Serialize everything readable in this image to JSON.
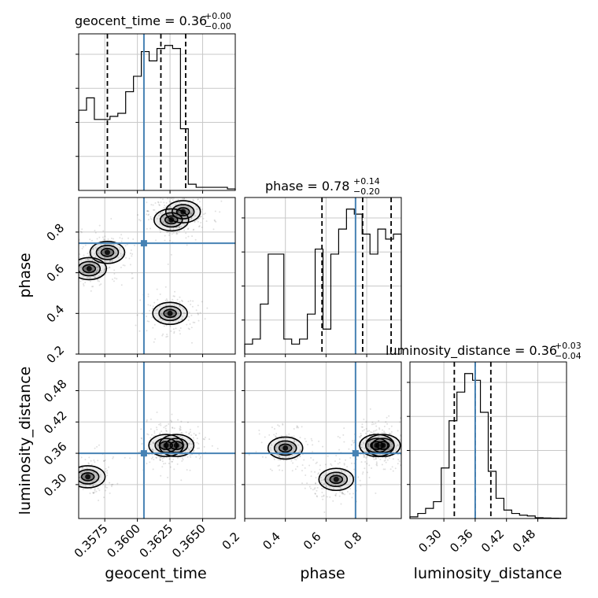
{
  "chart_data": {
    "type": "corner",
    "parameters": [
      "geocent_time",
      "phase",
      "luminosity_distance"
    ],
    "truths": {
      "geocent_time": 0.3605,
      "phase": 0.745,
      "luminosity_distance": 0.36
    },
    "truth_color": "#4682b4",
    "titles": [
      {
        "param": "geocent_time",
        "label": "geocent_time = 0.36",
        "plus": "+0.00",
        "minus": "−0.00"
      },
      {
        "param": "phase",
        "label": "phase = 0.78",
        "plus": "+0.14",
        "minus": "−0.20"
      },
      {
        "param": "luminosity_distance",
        "label": "luminosity_distance = 0.36",
        "plus": "+0.03",
        "minus": "−0.04"
      }
    ],
    "axes": {
      "geocent_time": {
        "range": [
          0.3555,
          0.3675
        ],
        "ticks": [
          "0.3575",
          "0.3600",
          "0.3625",
          "0.3650"
        ]
      },
      "phase": {
        "range": [
          0.2,
          0.97
        ],
        "ticks": [
          "0.2",
          "0.4",
          "0.6",
          "0.8"
        ]
      },
      "luminosity_distance": {
        "range": [
          0.235,
          0.535
        ],
        "ticks": [
          "0.30",
          "0.36",
          "0.42",
          "0.48"
        ]
      }
    },
    "histograms": {
      "geocent_time": {
        "bin_start": 0.3555,
        "bin_width": 0.0006,
        "counts": [
          0.26,
          0.3,
          0.23,
          0.23,
          0.24,
          0.25,
          0.32,
          0.37,
          0.45,
          0.42,
          0.46,
          0.47,
          0.46,
          0.2,
          0.02,
          0.01,
          0.01,
          0.01,
          0.01,
          0.005
        ],
        "quantiles": [
          0.3577,
          0.3618,
          0.3637
        ]
      },
      "phase": {
        "bin_start": 0.2,
        "bin_width": 0.0385,
        "counts": [
          0.02,
          0.03,
          0.1,
          0.2,
          0.2,
          0.03,
          0.02,
          0.03,
          0.08,
          0.21,
          0.05,
          0.2,
          0.25,
          0.29,
          0.28,
          0.24,
          0.2,
          0.25,
          0.23,
          0.24
        ],
        "quantiles": [
          0.58,
          0.78,
          0.92
        ]
      },
      "luminosity_distance": {
        "bin_start": 0.235,
        "bin_width": 0.015,
        "counts": [
          0.01,
          0.03,
          0.06,
          0.1,
          0.3,
          0.58,
          0.75,
          0.86,
          0.82,
          0.63,
          0.28,
          0.12,
          0.05,
          0.03,
          0.02,
          0.015,
          0.005,
          0.003,
          0.002,
          0.001
        ],
        "quantiles": [
          0.32,
          0.36,
          0.39
        ]
      }
    },
    "contours_2d": [
      {
        "x": "geocent_time",
        "y": "phase",
        "peaks": [
          {
            "x": 0.3563,
            "y": 0.62
          },
          {
            "x": 0.3577,
            "y": 0.7
          },
          {
            "x": 0.3626,
            "y": 0.86
          },
          {
            "x": 0.3635,
            "y": 0.9
          },
          {
            "x": 0.3625,
            "y": 0.4
          }
        ]
      },
      {
        "x": "geocent_time",
        "y": "luminosity_distance",
        "peaks": [
          {
            "x": 0.3562,
            "y": 0.315
          },
          {
            "x": 0.3622,
            "y": 0.375
          },
          {
            "x": 0.363,
            "y": 0.375
          }
        ]
      },
      {
        "x": "phase",
        "y": "luminosity_distance",
        "peaks": [
          {
            "x": 0.4,
            "y": 0.37
          },
          {
            "x": 0.65,
            "y": 0.31
          },
          {
            "x": 0.85,
            "y": 0.375
          },
          {
            "x": 0.88,
            "y": 0.375
          }
        ]
      }
    ],
    "grid": true,
    "legend": "none"
  }
}
